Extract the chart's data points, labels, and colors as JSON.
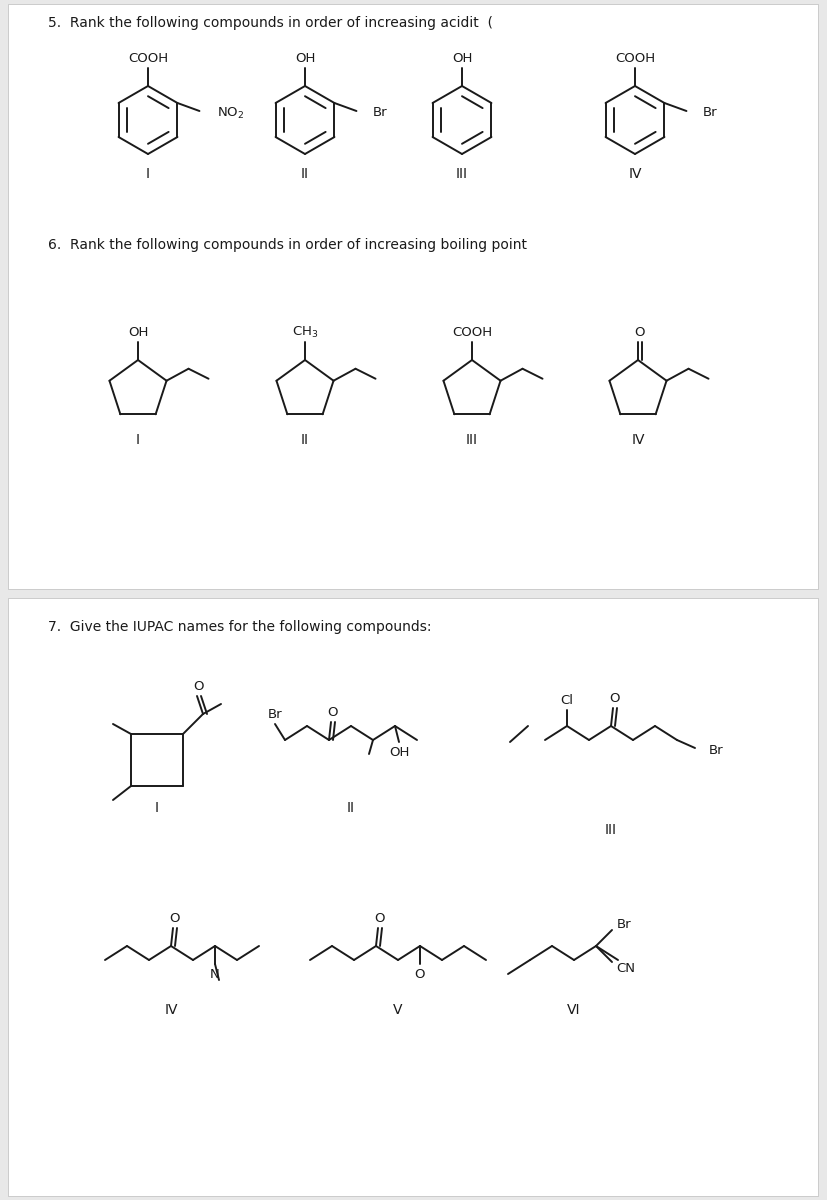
{
  "bg_color": "#e8e8e8",
  "panel1_bg": "#ffffff",
  "panel2_bg": "#ffffff",
  "text_color": "#1a1a1a",
  "line_color": "#1a1a1a",
  "q5_text": "5.  Rank the following compounds in order of increasing acidit  (",
  "q6_text": "6.  Rank the following compounds in order of increasing boiling point",
  "q7_text": "7.  Give the IUPAC names for the following compounds:"
}
